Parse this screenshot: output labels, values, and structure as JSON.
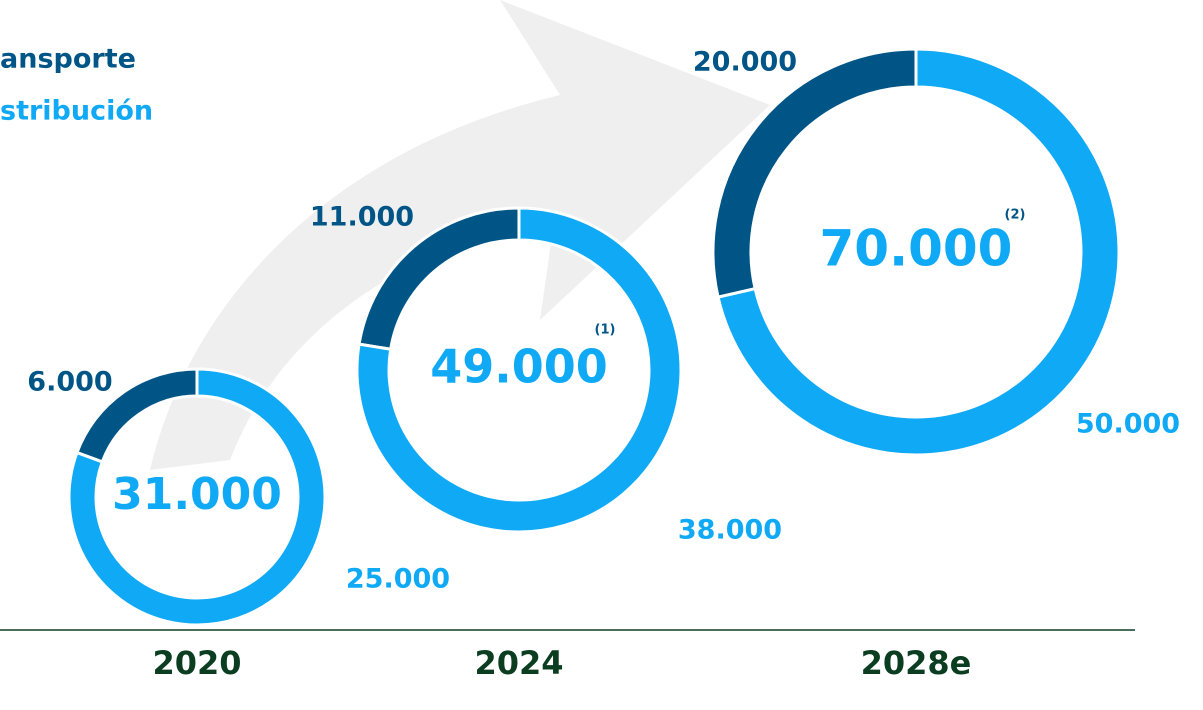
{
  "chart_data": {
    "type": "donut",
    "categories": [
      "2020",
      "2024",
      "2028e"
    ],
    "series": [
      {
        "name": "ansporte",
        "color": "#005587",
        "values": [
          6000,
          11000,
          20000
        ],
        "value_labels": [
          "6.000",
          "11.000",
          "20.000"
        ]
      },
      {
        "name": "stribución",
        "color": "#0fa9f5",
        "values": [
          25000,
          38000,
          50000
        ],
        "value_labels": [
          "25.000",
          "38.000",
          "50.000"
        ]
      }
    ],
    "totals": [
      31000,
      49000,
      70000
    ],
    "total_labels": [
      "31.000",
      "49.000",
      "70.000"
    ],
    "notes": [
      null,
      "(1)",
      "(2)"
    ]
  }
}
